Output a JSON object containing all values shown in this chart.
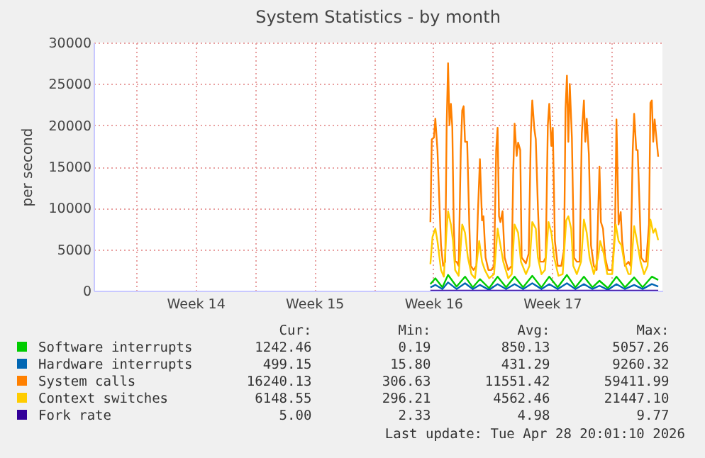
{
  "chart_data": {
    "type": "line",
    "title": "System Statistics - by month",
    "ylabel": "per second",
    "xlim": [
      "2026-03-27T12:00",
      "2026-04-30T00:00"
    ],
    "ylim": [
      0,
      30000
    ],
    "xticks": [
      {
        "value": "2026-03-30T00:00",
        "label": null
      },
      {
        "value": "2026-04-02T12:00",
        "label": "Week 14"
      },
      {
        "value": "2026-04-06T00:00",
        "label": null
      },
      {
        "value": "2026-04-09T12:00",
        "label": "Week 15"
      },
      {
        "value": "2026-04-13T00:00",
        "label": null
      },
      {
        "value": "2026-04-16T12:00",
        "label": "Week 16"
      },
      {
        "value": "2026-04-20T00:00",
        "label": null
      },
      {
        "value": "2026-04-23T12:00",
        "label": "Week 17"
      },
      {
        "value": "2026-04-27T00:00",
        "label": null
      }
    ],
    "yticks": [
      0,
      5000,
      10000,
      15000,
      20000,
      25000,
      30000
    ],
    "grid": true,
    "legend": "bottom",
    "annotations": [
      "Cur:",
      "Min:",
      "Avg:",
      "Max:",
      "1242.46",
      "0.19",
      "850.13",
      "5057.26",
      "499.15",
      "15.80",
      "431.29",
      "9260.32",
      "16240.13",
      "306.63",
      "11551.42",
      "59411.99",
      "6148.55",
      "296.21",
      "4562.46",
      "21447.10",
      "5.00",
      "2.33",
      "4.98",
      "9.77",
      "Last update: Tue Apr 28 20:01:10 2026"
    ],
    "series": [
      {
        "name": "Software interrupts",
        "color": "#00cc00",
        "x": [
          "2026-04-16T08:00",
          "2026-04-16T15:00",
          "2026-04-17T01:00",
          "2026-04-17T09:00",
          "2026-04-17T21:00",
          "2026-04-18T09:00",
          "2026-04-18T20:00",
          "2026-04-19T06:00",
          "2026-04-19T19:00",
          "2026-04-20T07:00",
          "2026-04-20T19:00",
          "2026-04-21T07:00",
          "2026-04-21T19:00",
          "2026-04-22T08:00",
          "2026-04-22T21:00",
          "2026-04-23T08:00",
          "2026-04-23T20:00",
          "2026-04-24T09:00",
          "2026-04-24T21:00",
          "2026-04-25T09:00",
          "2026-04-25T21:00",
          "2026-04-26T07:00",
          "2026-04-26T19:00",
          "2026-04-27T07:00",
          "2026-04-27T19:00",
          "2026-04-28T08:00",
          "2026-04-28T20:00",
          "2026-04-29T09:00",
          "2026-04-29T18:00"
        ],
        "values": [
          800,
          1500,
          400,
          1900,
          500,
          1700,
          400,
          1400,
          300,
          1700,
          400,
          1700,
          400,
          1800,
          400,
          1700,
          400,
          1900,
          400,
          1700,
          400,
          1200,
          300,
          1700,
          400,
          1600,
          400,
          1700,
          1300
        ]
      },
      {
        "name": "Hardware interrupts",
        "color": "#0066b3",
        "x": [
          "2026-04-16T08:00",
          "2026-04-16T15:00",
          "2026-04-17T01:00",
          "2026-04-17T09:00",
          "2026-04-17T21:00",
          "2026-04-18T09:00",
          "2026-04-18T20:00",
          "2026-04-19T06:00",
          "2026-04-19T19:00",
          "2026-04-20T07:00",
          "2026-04-20T19:00",
          "2026-04-21T07:00",
          "2026-04-21T19:00",
          "2026-04-22T08:00",
          "2026-04-22T21:00",
          "2026-04-23T08:00",
          "2026-04-23T20:00",
          "2026-04-24T09:00",
          "2026-04-24T21:00",
          "2026-04-25T09:00",
          "2026-04-25T21:00",
          "2026-04-26T07:00",
          "2026-04-26T19:00",
          "2026-04-27T07:00",
          "2026-04-27T19:00",
          "2026-04-28T08:00",
          "2026-04-28T20:00",
          "2026-04-29T09:00",
          "2026-04-29T18:00"
        ],
        "values": [
          400,
          700,
          200,
          1000,
          200,
          900,
          200,
          700,
          100,
          800,
          200,
          800,
          200,
          900,
          200,
          800,
          200,
          900,
          200,
          800,
          200,
          600,
          100,
          800,
          200,
          700,
          200,
          800,
          500
        ]
      },
      {
        "name": "System calls",
        "color": "#ff8000",
        "x": [
          "2026-04-16T08:00",
          "2026-04-16T10:00",
          "2026-04-16T13:00",
          "2026-04-16T15:00",
          "2026-04-16T18:00",
          "2026-04-16T21:00",
          "2026-04-16T23:00",
          "2026-04-17T02:00",
          "2026-04-17T05:00",
          "2026-04-17T07:00",
          "2026-04-17T09:00",
          "2026-04-17T11:00",
          "2026-04-17T13:00",
          "2026-04-17T15:00",
          "2026-04-17T17:00",
          "2026-04-17T19:00",
          "2026-04-17T21:00",
          "2026-04-18T00:00",
          "2026-04-18T03:00",
          "2026-04-18T05:00",
          "2026-04-18T07:00",
          "2026-04-18T09:00",
          "2026-04-18T12:00",
          "2026-04-18T15:00",
          "2026-04-18T17:00",
          "2026-04-18T21:00",
          "2026-04-19T01:00",
          "2026-04-19T03:00",
          "2026-04-19T06:00",
          "2026-04-19T09:00",
          "2026-04-19T11:00",
          "2026-04-19T14:00",
          "2026-04-19T18:00",
          "2026-04-19T22:00",
          "2026-04-20T02:00",
          "2026-04-20T05:00",
          "2026-04-20T07:00",
          "2026-04-20T09:00",
          "2026-04-20T11:00",
          "2026-04-20T14:00",
          "2026-04-20T17:00",
          "2026-04-20T22:00",
          "2026-04-21T03:00",
          "2026-04-21T05:00",
          "2026-04-21T07:00",
          "2026-04-21T10:00",
          "2026-04-21T12:00",
          "2026-04-21T15:00",
          "2026-04-21T17:00",
          "2026-04-21T23:00",
          "2026-04-22T03:00",
          "2026-04-22T06:00",
          "2026-04-22T08:00",
          "2026-04-22T11:00",
          "2026-04-22T13:00",
          "2026-04-22T16:00",
          "2026-04-22T19:00",
          "2026-04-23T00:00",
          "2026-04-23T03:00",
          "2026-04-23T06:00",
          "2026-04-23T08:00",
          "2026-04-23T11:00",
          "2026-04-23T13:00",
          "2026-04-23T16:00",
          "2026-04-23T20:00",
          "2026-04-24T01:00",
          "2026-04-24T05:00",
          "2026-04-24T07:00",
          "2026-04-24T09:00",
          "2026-04-24T11:00",
          "2026-04-24T13:00",
          "2026-04-24T16:00",
          "2026-04-24T19:00",
          "2026-04-24T23:00",
          "2026-04-25T03:00",
          "2026-04-25T06:00",
          "2026-04-25T09:00",
          "2026-04-25T11:00",
          "2026-04-25T13:00",
          "2026-04-25T16:00",
          "2026-04-25T19:00",
          "2026-04-25T23:00",
          "2026-04-26T03:00",
          "2026-04-26T05:00",
          "2026-04-26T07:00",
          "2026-04-26T09:00",
          "2026-04-26T12:00",
          "2026-04-26T15:00",
          "2026-04-26T19:00",
          "2026-04-27T01:00",
          "2026-04-27T05:00",
          "2026-04-27T07:00",
          "2026-04-27T10:00",
          "2026-04-27T13:00",
          "2026-04-27T15:00",
          "2026-04-27T19:00",
          "2026-04-28T00:00",
          "2026-04-28T03:00",
          "2026-04-28T06:00",
          "2026-04-28T08:00",
          "2026-04-28T11:00",
          "2026-04-28T13:00",
          "2026-04-28T15:00",
          "2026-04-28T18:00",
          "2026-04-28T22:00",
          "2026-04-29T01:00",
          "2026-04-29T05:00",
          "2026-04-29T07:00",
          "2026-04-29T09:00",
          "2026-04-29T11:00",
          "2026-04-29T13:00",
          "2026-04-29T16:00",
          "2026-04-29T18:00"
        ],
        "values": [
          8300,
          18300,
          18500,
          20800,
          17000,
          10000,
          5500,
          3000,
          3500,
          20000,
          27500,
          20000,
          22600,
          19700,
          8000,
          3500,
          3500,
          3000,
          17000,
          21800,
          22300,
          18000,
          18000,
          8000,
          3000,
          2500,
          3000,
          9000,
          15900,
          8500,
          9000,
          4000,
          2500,
          2500,
          3000,
          17000,
          19700,
          9000,
          8300,
          9600,
          4000,
          2500,
          3000,
          14000,
          20200,
          16300,
          17900,
          17000,
          4000,
          3300,
          4500,
          19000,
          23000,
          19500,
          18300,
          10000,
          3500,
          3500,
          4000,
          20000,
          22600,
          17500,
          19700,
          6000,
          3000,
          3000,
          5000,
          22000,
          26000,
          18000,
          25000,
          18500,
          4000,
          3500,
          3500,
          19000,
          23000,
          18000,
          20800,
          16500,
          5500,
          3000,
          2500,
          9000,
          15000,
          8300,
          7500,
          4000,
          2500,
          2500,
          7500,
          20700,
          8000,
          9500,
          6000,
          3000,
          3500,
          3000,
          17000,
          21400,
          17000,
          17000,
          12000,
          4000,
          3500,
          3500,
          8000,
          22700,
          23000,
          18000,
          20700,
          18000,
          16200
        ]
      },
      {
        "name": "Context switches",
        "color": "#ffcc00",
        "x": [
          "2026-04-16T08:00",
          "2026-04-16T11:00",
          "2026-04-16T15:00",
          "2026-04-16T18:00",
          "2026-04-16T23:00",
          "2026-04-17T03:00",
          "2026-04-17T07:00",
          "2026-04-17T09:00",
          "2026-04-17T13:00",
          "2026-04-17T16:00",
          "2026-04-17T19:00",
          "2026-04-18T00:00",
          "2026-04-18T05:00",
          "2026-04-18T09:00",
          "2026-04-18T13:00",
          "2026-04-18T18:00",
          "2026-04-18T23:00",
          "2026-04-19T05:00",
          "2026-04-19T09:00",
          "2026-04-19T13:00",
          "2026-04-19T19:00",
          "2026-04-20T02:00",
          "2026-04-20T07:00",
          "2026-04-20T11:00",
          "2026-04-20T15:00",
          "2026-04-20T22:00",
          "2026-04-21T03:00",
          "2026-04-21T07:00",
          "2026-04-21T12:00",
          "2026-04-21T16:00",
          "2026-04-21T23:00",
          "2026-04-22T04:00",
          "2026-04-22T08:00",
          "2026-04-22T13:00",
          "2026-04-22T16:00",
          "2026-04-22T21:00",
          "2026-04-23T02:00",
          "2026-04-23T07:00",
          "2026-04-23T11:00",
          "2026-04-23T15:00",
          "2026-04-23T21:00",
          "2026-04-24T03:00",
          "2026-04-24T08:00",
          "2026-04-24T11:00",
          "2026-04-24T15:00",
          "2026-04-24T18:00",
          "2026-04-24T23:00",
          "2026-04-25T05:00",
          "2026-04-25T09:00",
          "2026-04-25T13:00",
          "2026-04-25T17:00",
          "2026-04-25T23:00",
          "2026-04-26T05:00",
          "2026-04-26T08:00",
          "2026-04-26T13:00",
          "2026-04-26T18:00",
          "2026-04-27T01:00",
          "2026-04-27T06:00",
          "2026-04-27T10:00",
          "2026-04-27T14:00",
          "2026-04-27T18:00",
          "2026-04-28T00:00",
          "2026-04-28T03:00",
          "2026-04-28T08:00",
          "2026-04-28T11:00",
          "2026-04-28T17:00",
          "2026-04-28T22:00",
          "2026-04-29T03:00",
          "2026-04-29T07:00",
          "2026-04-29T11:00",
          "2026-04-29T14:00",
          "2026-04-29T18:00"
        ],
        "values": [
          3200,
          6500,
          7500,
          6000,
          2500,
          1700,
          7500,
          9600,
          8000,
          6000,
          2500,
          1800,
          8000,
          7000,
          4000,
          2000,
          1500,
          6000,
          3500,
          2500,
          1500,
          2000,
          7500,
          5500,
          3500,
          1500,
          2000,
          8000,
          7000,
          3500,
          2000,
          3000,
          8300,
          7500,
          4000,
          2000,
          2500,
          8300,
          7000,
          4000,
          1800,
          2000,
          8500,
          9000,
          7500,
          3000,
          2000,
          3500,
          8600,
          7000,
          4000,
          2000,
          4000,
          6000,
          4500,
          2000,
          2000,
          8000,
          6000,
          5500,
          3500,
          2000,
          2000,
          7800,
          6500,
          3500,
          2000,
          3000,
          8600,
          7000,
          7500,
          6100
        ]
      },
      {
        "name": "Fork rate",
        "color": "#330099",
        "x": [
          "2026-04-16T08:00",
          "2026-04-17T09:00",
          "2026-04-18T09:00",
          "2026-04-19T06:00",
          "2026-04-20T07:00",
          "2026-04-21T07:00",
          "2026-04-22T08:00",
          "2026-04-23T08:00",
          "2026-04-24T09:00",
          "2026-04-25T09:00",
          "2026-04-26T07:00",
          "2026-04-27T07:00",
          "2026-04-28T08:00",
          "2026-04-29T09:00",
          "2026-04-29T18:00"
        ],
        "values": [
          0,
          0,
          0,
          0,
          0,
          0,
          0,
          0,
          0,
          0,
          0,
          0,
          0,
          0,
          0
        ]
      }
    ]
  }
}
